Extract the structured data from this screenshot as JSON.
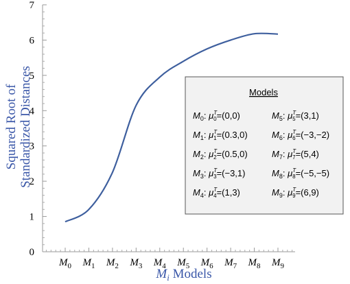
{
  "chart_data": {
    "type": "line",
    "xlabel_main": "M",
    "xlabel_sub": "i",
    "xlabel_rest": " Models",
    "ylabel_line1": "Squared Root of",
    "ylabel_line2": "Standardized Distances",
    "ylim": [
      0,
      7
    ],
    "yticks": [
      "0",
      "1",
      "2",
      "3",
      "4",
      "5",
      "6",
      "7"
    ],
    "categories": [
      {
        "base": "M",
        "sub": "0"
      },
      {
        "base": "M",
        "sub": "1"
      },
      {
        "base": "M",
        "sub": "2"
      },
      {
        "base": "M",
        "sub": "3"
      },
      {
        "base": "M",
        "sub": "4"
      },
      {
        "base": "M",
        "sub": "5"
      },
      {
        "base": "M",
        "sub": "6"
      },
      {
        "base": "M",
        "sub": "7"
      },
      {
        "base": "M",
        "sub": "8"
      },
      {
        "base": "M",
        "sub": "9"
      }
    ],
    "series": [
      {
        "color": "#3e5f9e",
        "values": [
          0.85,
          1.2,
          2.25,
          4.15,
          4.95,
          5.4,
          5.75,
          6.0,
          6.18,
          6.17
        ]
      }
    ],
    "legend": {
      "title": "Models",
      "position": "right",
      "entries": [
        {
          "model": "M",
          "sub": "0",
          "mu_sub": "0",
          "value": "=(0,0)"
        },
        {
          "model": "M",
          "sub": "1",
          "mu_sub": "1",
          "value": "=(0.3,0)"
        },
        {
          "model": "M",
          "sub": "2",
          "mu_sub": "2",
          "value": "=(0.5,0)"
        },
        {
          "model": "M",
          "sub": "3",
          "mu_sub": "3",
          "value": "=(−3,1)"
        },
        {
          "model": "M",
          "sub": "4",
          "mu_sub": "4",
          "value": "=(1,3)"
        },
        {
          "model": "M",
          "sub": "5",
          "mu_sub": "5",
          "value": "=(3,1)"
        },
        {
          "model": "M",
          "sub": "6",
          "mu_sub": "6",
          "value": "=(−3,−2)"
        },
        {
          "model": "M",
          "sub": "7",
          "mu_sub": "7",
          "value": "=(5,4)"
        },
        {
          "model": "M",
          "sub": "8",
          "mu_sub": "8",
          "value": "=(−5,−5)"
        },
        {
          "model": "M",
          "sub": "9",
          "mu_sub": "9",
          "value": "=(6,9)"
        }
      ],
      "mu_symbol": "μ",
      "mu_sup": "T"
    }
  }
}
